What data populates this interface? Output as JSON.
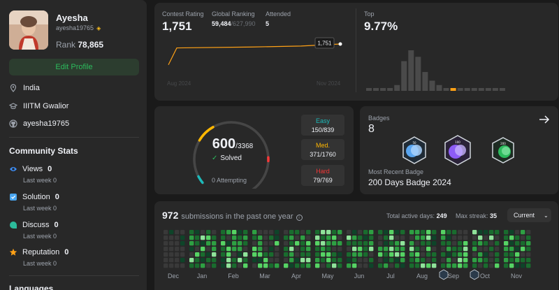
{
  "profile": {
    "name": "Ayesha",
    "username": "ayesha19765",
    "rank_label": "Rank",
    "rank_value": "78,865",
    "edit_label": "Edit Profile",
    "location": "India",
    "school": "IIITM Gwalior",
    "github": "ayesha19765"
  },
  "community": {
    "heading": "Community Stats",
    "stats": [
      {
        "label": "Views",
        "value": "0",
        "sub": "Last week 0",
        "color": "#3d8ffb"
      },
      {
        "label": "Solution",
        "value": "0",
        "sub": "Last week 0",
        "color": "#49a5ef"
      },
      {
        "label": "Discuss",
        "value": "0",
        "sub": "Last week 0",
        "color": "#2cbb9b"
      },
      {
        "label": "Reputation",
        "value": "0",
        "sub": "Last week 0",
        "color": "#ffa116"
      }
    ],
    "languages_heading": "Languages"
  },
  "contest": {
    "rating_label": "Contest Rating",
    "rating_value": "1,751",
    "global_label": "Global Ranking",
    "global_value": "59,484",
    "global_total": "/627,990",
    "attended_label": "Attended",
    "attended_value": "5",
    "tooltip": "1,751",
    "x_start": "Aug 2024",
    "x_end": "Nov 2024",
    "top_label": "Top",
    "top_value": "9.77%",
    "rating_history": [
      1480,
      1700,
      1712,
      1725,
      1751
    ],
    "histogram": [
      1,
      1,
      1,
      1,
      3,
      14,
      19,
      16,
      9,
      5,
      3,
      1,
      1,
      1,
      1,
      1,
      1,
      1,
      1,
      1
    ],
    "histogram_highlight_index": 12,
    "accent": "#ffa116"
  },
  "solved": {
    "count": "600",
    "total": "/3368",
    "solved_label": "Solved",
    "attempting": "0 Attempting",
    "segments": {
      "easy": 150,
      "medium": 371,
      "hard": 79
    },
    "easy": {
      "label": "Easy",
      "value": "150/839",
      "color": "#1cbaba"
    },
    "medium": {
      "label": "Med.",
      "value": "371/1760",
      "color": "#ffb700"
    },
    "hard": {
      "label": "Hard",
      "value": "79/769",
      "color": "#f63737"
    }
  },
  "badges": {
    "label": "Badges",
    "count": "8",
    "recent_label": "Most Recent Badge",
    "recent_name": "200 Days Badge 2024",
    "items": [
      {
        "icon": "badge-50-days-icon",
        "text": "50",
        "color": "#5aa6f0"
      },
      {
        "icon": "badge-100-days-icon",
        "text": "100",
        "color": "#8d5cf6"
      },
      {
        "icon": "badge-200-days-icon",
        "text": "200",
        "color": "#2cbb5d"
      }
    ]
  },
  "submissions": {
    "count": "972",
    "text": "submissions in the past one year",
    "active_label": "Total active days:",
    "active_value": "249",
    "streak_label": "Max streak:",
    "streak_value": "35",
    "select_value": "Current",
    "months": [
      "Dec",
      "Jan",
      "Feb",
      "Mar",
      "Apr",
      "May",
      "Jun",
      "Jul",
      "Aug",
      "Sep",
      "Oct",
      "Nov"
    ]
  }
}
